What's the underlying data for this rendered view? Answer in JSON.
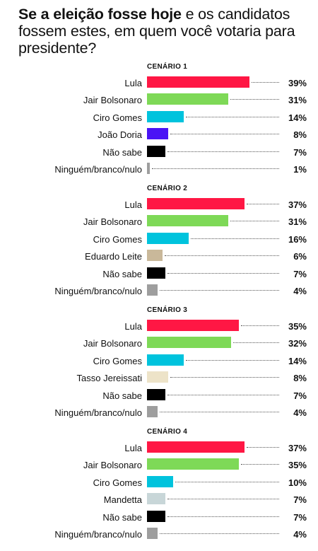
{
  "title": {
    "bold": "Se a eleição fosse hoje",
    "rest": " e os candidatos fossem estes, em quem você votaria para presidente?"
  },
  "chart_data": [
    {
      "type": "bar",
      "title": "CENÁRIO 1",
      "categories": [
        "Lula",
        "Jair Bolsonaro",
        "Ciro Gomes",
        "João Doria",
        "Não sabe",
        "Ninguém/branco/nulo"
      ],
      "values": [
        39,
        31,
        14,
        8,
        7,
        1
      ],
      "labels": [
        "39%",
        "31%",
        "14%",
        "8%",
        "7%",
        "1%"
      ],
      "colors": [
        "#ff1744",
        "#7ed957",
        "#00c3dd",
        "#4a14f5",
        "#000000",
        "#9e9e9e"
      ]
    },
    {
      "type": "bar",
      "title": "CENÁRIO 2",
      "categories": [
        "Lula",
        "Jair Bolsonaro",
        "Ciro Gomes",
        "Eduardo Leite",
        "Não sabe",
        "Ninguém/branco/nulo"
      ],
      "values": [
        37,
        31,
        16,
        6,
        7,
        4
      ],
      "labels": [
        "37%",
        "31%",
        "16%",
        "6%",
        "7%",
        "4%"
      ],
      "colors": [
        "#ff1744",
        "#7ed957",
        "#00c3dd",
        "#c9b89a",
        "#000000",
        "#9e9e9e"
      ]
    },
    {
      "type": "bar",
      "title": "CENÁRIO 3",
      "categories": [
        "Lula",
        "Jair Bolsonaro",
        "Ciro Gomes",
        "Tasso Jereissati",
        "Não sabe",
        "Ninguém/branco/nulo"
      ],
      "values": [
        35,
        32,
        14,
        8,
        7,
        4
      ],
      "labels": [
        "35%",
        "32%",
        "14%",
        "8%",
        "7%",
        "4%"
      ],
      "colors": [
        "#ff1744",
        "#7ed957",
        "#00c3dd",
        "#ede3c8",
        "#000000",
        "#9e9e9e"
      ]
    },
    {
      "type": "bar",
      "title": "CENÁRIO 4",
      "categories": [
        "Lula",
        "Jair Bolsonaro",
        "Ciro Gomes",
        "Mandetta",
        "Não sabe",
        "Ninguém/branco/nulo"
      ],
      "values": [
        37,
        35,
        10,
        7,
        7,
        4
      ],
      "labels": [
        "37%",
        "35%",
        "10%",
        "7%",
        "7%",
        "4%"
      ],
      "colors": [
        "#ff1744",
        "#7ed957",
        "#00c3dd",
        "#c8d6d8",
        "#000000",
        "#9e9e9e"
      ]
    }
  ]
}
